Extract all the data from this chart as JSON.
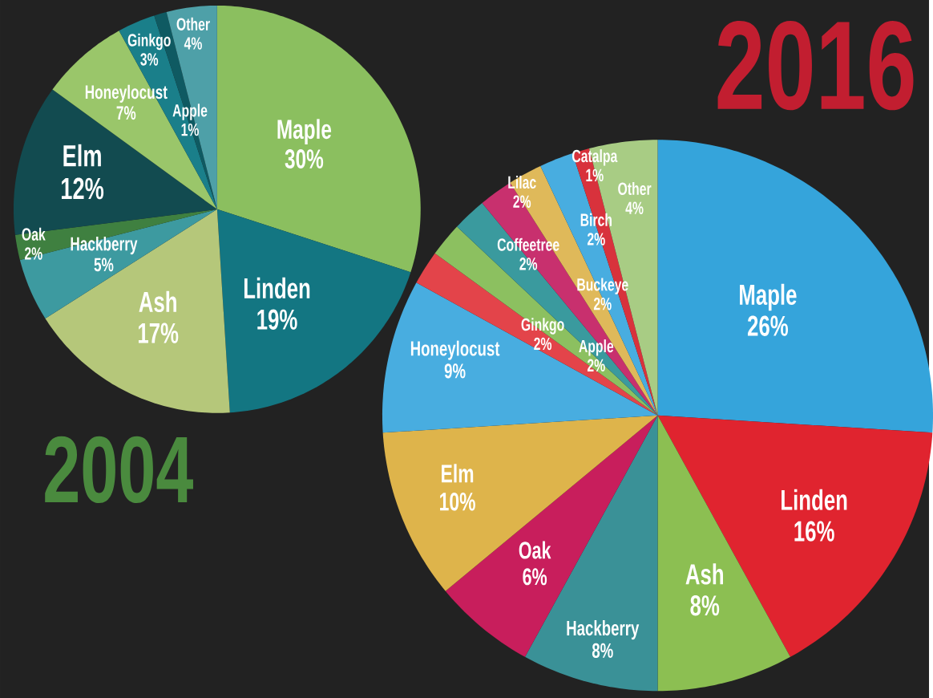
{
  "chart_data": [
    {
      "type": "pie",
      "title": "2004",
      "categories": [
        "Maple",
        "Linden",
        "Ash",
        "Hackberry",
        "Oak",
        "Elm",
        "Honeylocust",
        "Ginkgo",
        "Apple",
        "Other"
      ],
      "values": [
        30,
        19,
        17,
        5,
        2,
        12,
        7,
        3,
        1,
        4
      ],
      "value_labels": [
        "30%",
        "19%",
        "17%",
        "5%",
        "2%",
        "12%",
        "7%",
        "3%",
        "1%",
        "4%"
      ],
      "colors": [
        "#8bbf5f",
        "#137682",
        "#b5c77a",
        "#3d9aa0",
        "#3f8040",
        "#124b50",
        "#9ac66a",
        "#1a7f8a",
        "#0f5a62",
        "#4ea0a8"
      ]
    },
    {
      "type": "pie",
      "title": "2016",
      "categories": [
        "Maple",
        "Linden",
        "Ash",
        "Hackberry",
        "Oak",
        "Elm",
        "Honeylocust",
        "Ginkgo",
        "Apple",
        "Coffeetree",
        "Lilac",
        "Buckeye",
        "Birch",
        "Catalpa",
        "Other"
      ],
      "values": [
        26,
        16,
        8,
        8,
        6,
        10,
        9,
        2,
        2,
        2,
        2,
        2,
        2,
        1,
        4
      ],
      "value_labels": [
        "26%",
        "16%",
        "8%",
        "8%",
        "6%",
        "10%",
        "9%",
        "2%",
        "2%",
        "2%",
        "2%",
        "2%",
        "2%",
        "1%",
        "4%"
      ],
      "colors": [
        "#35a4db",
        "#e0242f",
        "#8cbf52",
        "#3a9197",
        "#c81e5c",
        "#deb44b",
        "#48ade0",
        "#e3444a",
        "#8cc060",
        "#3a9a9e",
        "#c8306e",
        "#dfb95a",
        "#48ade0",
        "#d8323c",
        "#a8cc84"
      ]
    }
  ]
}
